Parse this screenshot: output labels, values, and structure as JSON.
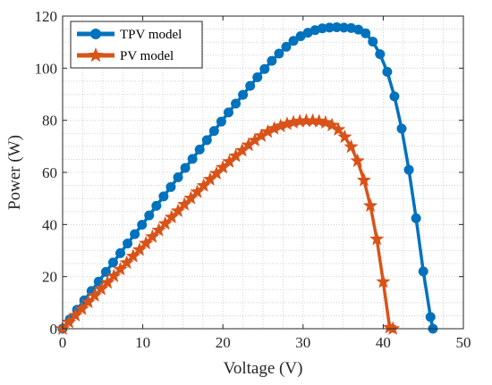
{
  "chart_data": {
    "type": "line",
    "xlabel": "Voltage (V)",
    "ylabel": "Power (W)",
    "xlim": [
      0,
      50
    ],
    "ylim": [
      0,
      120
    ],
    "x_ticks": [
      0,
      10,
      20,
      30,
      40,
      50
    ],
    "y_ticks": [
      0,
      20,
      40,
      60,
      80,
      100,
      120
    ],
    "grid": true,
    "legend_position": "top-left",
    "series": [
      {
        "name": "TPV model",
        "color": "#0072BD",
        "marker": "circle",
        "points": [
          [
            0,
            0
          ],
          [
            0.9,
            3.6
          ],
          [
            1.8,
            7.3
          ],
          [
            2.7,
            10.9
          ],
          [
            3.6,
            14.5
          ],
          [
            4.5,
            18.1
          ],
          [
            5.4,
            21.8
          ],
          [
            6.3,
            25.4
          ],
          [
            7.2,
            29.0
          ],
          [
            8.1,
            32.7
          ],
          [
            9.0,
            36.3
          ],
          [
            9.9,
            39.9
          ],
          [
            10.8,
            43.5
          ],
          [
            11.7,
            47.2
          ],
          [
            12.6,
            50.8
          ],
          [
            13.5,
            54.4
          ],
          [
            14.4,
            58.1
          ],
          [
            15.3,
            61.7
          ],
          [
            16.2,
            65.2
          ],
          [
            17.1,
            68.8
          ],
          [
            18.0,
            72.4
          ],
          [
            18.9,
            75.9
          ],
          [
            19.8,
            79.5
          ],
          [
            20.7,
            83.0
          ],
          [
            21.6,
            86.4
          ],
          [
            22.5,
            89.8
          ],
          [
            23.4,
            93.2
          ],
          [
            24.3,
            96.5
          ],
          [
            25.2,
            99.7
          ],
          [
            26.1,
            102.8
          ],
          [
            27.0,
            105.6
          ],
          [
            27.9,
            108.2
          ],
          [
            28.8,
            110.5
          ],
          [
            29.7,
            112.3
          ],
          [
            30.6,
            113.6
          ],
          [
            31.5,
            114.6
          ],
          [
            32.4,
            115.3
          ],
          [
            33.3,
            115.6
          ],
          [
            34.2,
            115.7
          ],
          [
            35.1,
            115.6
          ],
          [
            36.0,
            115.4
          ],
          [
            36.9,
            114.8
          ],
          [
            37.8,
            113.4
          ],
          [
            38.7,
            110.2
          ],
          [
            39.6,
            105.4
          ],
          [
            40.5,
            98.6
          ],
          [
            41.4,
            89.2
          ],
          [
            42.3,
            76.8
          ],
          [
            43.2,
            61.0
          ],
          [
            44.1,
            42.4
          ],
          [
            45.0,
            22.0
          ],
          [
            45.9,
            4.5
          ],
          [
            46.2,
            0
          ]
        ]
      },
      {
        "name": "PV model",
        "color": "#D95319",
        "marker": "star",
        "points": [
          [
            0,
            0
          ],
          [
            0.8,
            2.5
          ],
          [
            1.6,
            5.1
          ],
          [
            2.4,
            7.6
          ],
          [
            3.2,
            10.2
          ],
          [
            4.0,
            12.7
          ],
          [
            4.8,
            15.2
          ],
          [
            5.6,
            17.7
          ],
          [
            6.4,
            20.2
          ],
          [
            7.2,
            22.8
          ],
          [
            8.0,
            25.3
          ],
          [
            8.8,
            27.8
          ],
          [
            9.6,
            30.3
          ],
          [
            10.4,
            32.8
          ],
          [
            11.2,
            35.3
          ],
          [
            12.0,
            37.8
          ],
          [
            12.8,
            40.3
          ],
          [
            13.6,
            42.8
          ],
          [
            14.4,
            45.2
          ],
          [
            15.2,
            47.7
          ],
          [
            16.0,
            50.1
          ],
          [
            16.8,
            52.5
          ],
          [
            17.6,
            54.9
          ],
          [
            18.4,
            57.3
          ],
          [
            19.2,
            59.6
          ],
          [
            20.0,
            61.9
          ],
          [
            20.8,
            64.1
          ],
          [
            21.6,
            66.3
          ],
          [
            22.4,
            68.4
          ],
          [
            23.2,
            70.5
          ],
          [
            24.0,
            72.3
          ],
          [
            24.8,
            74.0
          ],
          [
            25.6,
            75.6
          ],
          [
            26.4,
            76.8
          ],
          [
            27.2,
            77.8
          ],
          [
            28.0,
            78.6
          ],
          [
            28.8,
            79.2
          ],
          [
            29.6,
            79.6
          ],
          [
            30.4,
            79.8
          ],
          [
            31.2,
            79.8
          ],
          [
            32.0,
            79.6
          ],
          [
            32.8,
            79.1
          ],
          [
            33.6,
            78.1
          ],
          [
            34.4,
            76.4
          ],
          [
            35.2,
            73.6
          ],
          [
            36.0,
            69.8
          ],
          [
            36.8,
            64.4
          ],
          [
            37.6,
            57.0
          ],
          [
            38.4,
            47.2
          ],
          [
            39.2,
            34.4
          ],
          [
            40.0,
            18.0
          ],
          [
            40.8,
            0.5
          ],
          [
            41.2,
            0
          ]
        ]
      }
    ]
  }
}
